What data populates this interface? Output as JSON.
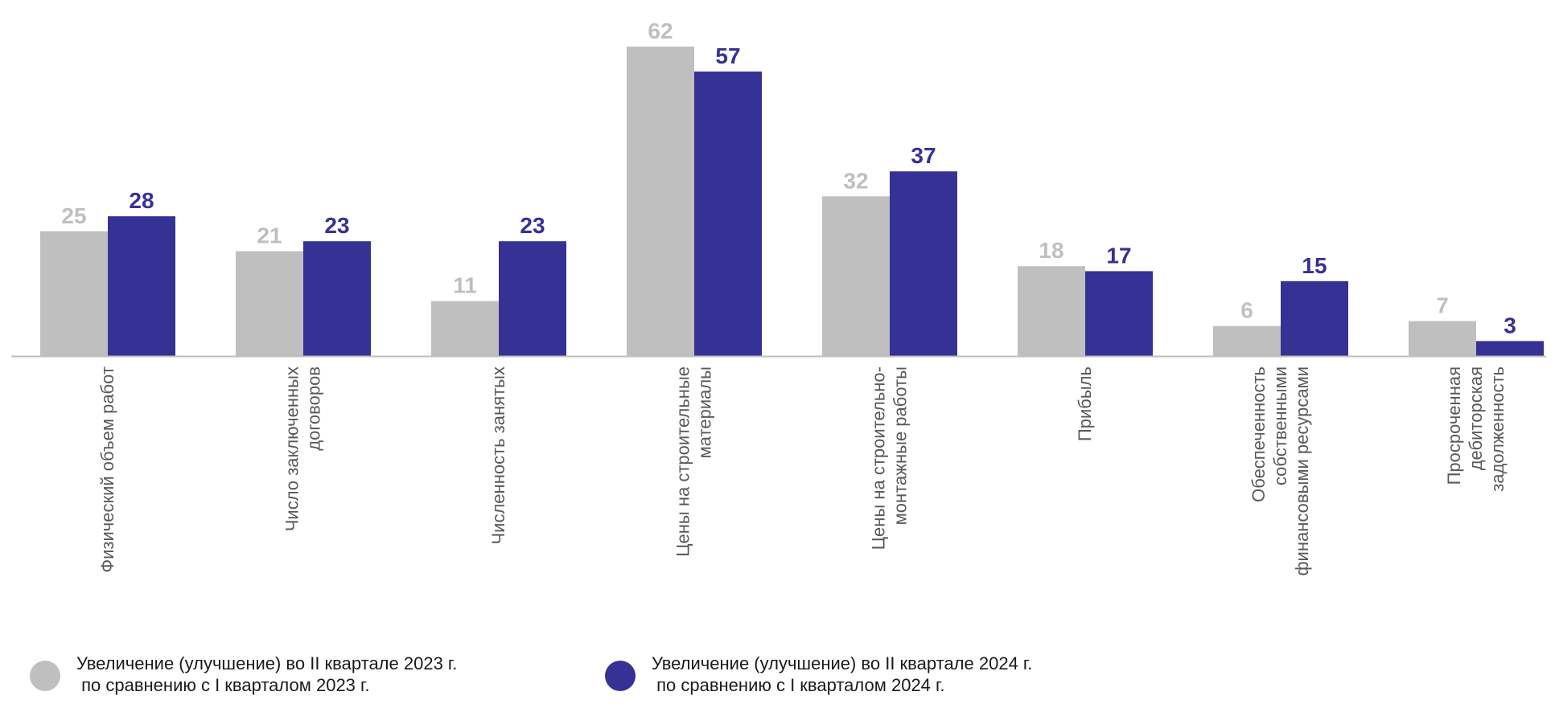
{
  "chart_data": {
    "type": "bar",
    "categories": [
      [
        "Физический объем работ"
      ],
      [
        "Число заключенных",
        "договоров"
      ],
      [
        "Численность занятых"
      ],
      [
        "Цены на строительные",
        "материалы"
      ],
      [
        "Цены на строительно-",
        "монтажные работы"
      ],
      [
        "Прибыль"
      ],
      [
        "Обеспеченность",
        "собственными",
        "финансовыми ресурсами"
      ],
      [
        "Просроченная",
        "дебиторская",
        "задолженность"
      ]
    ],
    "series": [
      {
        "name": "Увеличение (улучшение) во II квартале 2023 г.\n по сравнению с I кварталом 2023 г.",
        "color": "#bfbfbf",
        "values": [
          25,
          21,
          11,
          62,
          32,
          18,
          6,
          7
        ]
      },
      {
        "name": "Увеличение (улучшение) во II квартале 2024 г.\n по сравнению с I кварталом 2024 г.",
        "color": "#363194",
        "values": [
          28,
          23,
          23,
          57,
          37,
          17,
          15,
          3
        ]
      }
    ],
    "ylim": [
      0,
      62
    ],
    "grid": false,
    "legend": "bottom"
  }
}
